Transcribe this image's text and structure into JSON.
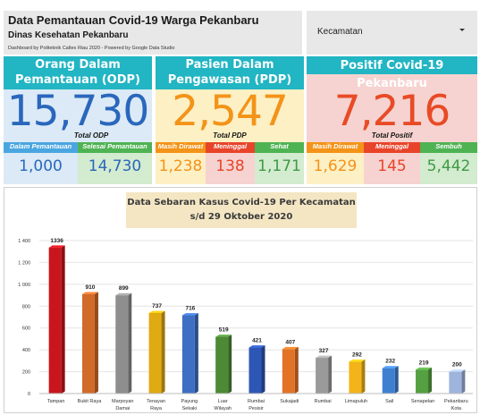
{
  "header": {
    "title": "Data Pemantauan Covid-19 Warga Pekanbaru",
    "subtitle": "Dinas Kesehatan Pekanbaru",
    "credit": "Dashboard by Politeknik Caltex Riau 2020 - Powered by Google Data Studio"
  },
  "filter": {
    "label": "Kecamatan"
  },
  "odp": {
    "title_line1": "Orang Dalam",
    "title_line2": "Pemantauan (ODP)",
    "total": "15,730",
    "total_label": "Total ODP",
    "sub": [
      {
        "label": "Dalam Pemantauan",
        "value": "1,000"
      },
      {
        "label": "Selesai Pemantauan",
        "value": "14,730"
      }
    ]
  },
  "pdp": {
    "title_line1": "Pasien Dalam",
    "title_line2": "Pengawasan (PDP)",
    "total": "2,547",
    "total_label": "Total PDP",
    "sub": [
      {
        "label": "Masih Dirawat",
        "value": "1,238"
      },
      {
        "label": "Meninggal",
        "value": "138"
      },
      {
        "label": "Sehat",
        "value": "1,171"
      }
    ]
  },
  "positif": {
    "title": "Positif Covid-19 Pekanbaru",
    "total": "7,216",
    "total_label": "Total Positif",
    "sub": [
      {
        "label": "Masih Dirawat",
        "value": "1,629"
      },
      {
        "label": "Meninggal",
        "value": "145"
      },
      {
        "label": "Sembuh",
        "value": "5,442"
      }
    ]
  },
  "colors": {
    "header_teal": "#22b5c3",
    "odp_blue": "#2a67bc",
    "pdp_orange": "#f39318",
    "pos_red": "#e84b26",
    "sub_blue": "#4aa6e0",
    "sub_green": "#4fb353",
    "sub_orange": "#f39318",
    "sub_red": "#e8442a"
  },
  "chart_data": {
    "type": "bar",
    "title_line1": "Data Sebaran Kasus Covid-19 Per Kecamatan",
    "title_line2": "s/d 29 Oktober 2020",
    "categories": [
      [
        "Tampan"
      ],
      [
        "Bukit Raya"
      ],
      [
        "Marpoyan",
        "Damai"
      ],
      [
        "Tenayan",
        "Raya"
      ],
      [
        "Payung",
        "Sekaki"
      ],
      [
        "Luar",
        "Wilayah"
      ],
      [
        "Rumbai",
        "Pesisir"
      ],
      [
        "Sukajadi"
      ],
      [
        "Rumbai"
      ],
      [
        "Limapuluh"
      ],
      [
        "Sail"
      ],
      [
        "Senapelan"
      ],
      [
        "Pekanbaru",
        "Kota"
      ]
    ],
    "values": [
      1336,
      910,
      899,
      737,
      716,
      519,
      421,
      407,
      327,
      292,
      232,
      219,
      200
    ],
    "bar_colors": [
      "#c8161d",
      "#d06b2a",
      "#8e8e8e",
      "#e0aa12",
      "#3e6fc2",
      "#4c8a35",
      "#2e56b4",
      "#e27326",
      "#9a9a9a",
      "#f2b418",
      "#3f7fd0",
      "#55a040",
      "#9fb4dd"
    ],
    "y_ticks": [
      "0",
      "200",
      "400",
      "600",
      "800",
      "1 000",
      "1 200",
      "1 400"
    ],
    "ylim": [
      0,
      1400
    ],
    "grid": true
  }
}
